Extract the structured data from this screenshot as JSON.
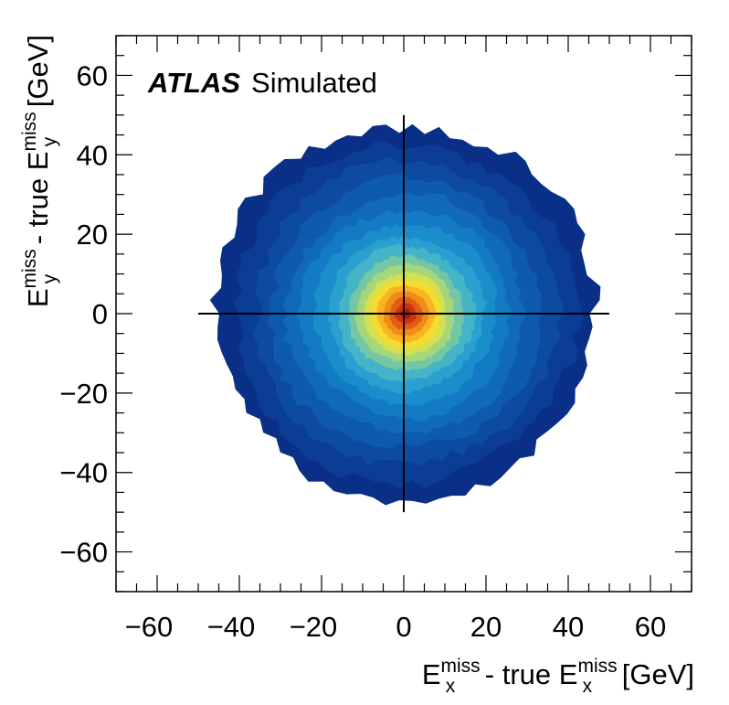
{
  "chart_data": {
    "type": "heatmap",
    "experiment_label": "ATLAS",
    "experiment_status": "Simulated",
    "xlabel": {
      "base": "E",
      "sup": "miss",
      "sub": "x",
      "middle": " - true E",
      "sup2": "miss",
      "sub2": "x",
      "units": " [GeV]"
    },
    "ylabel": {
      "base": "E",
      "sup": "miss",
      "sub": "y",
      "middle": " - true E",
      "sup2": "miss",
      "sub2": "y",
      "units": " [GeV]"
    },
    "xlim": [
      -70,
      70
    ],
    "ylim": [
      -70,
      70
    ],
    "x_ticks": [
      -60,
      -40,
      -20,
      0,
      20,
      40,
      60
    ],
    "y_ticks": [
      -60,
      -40,
      -20,
      0,
      20,
      40,
      60
    ],
    "x_tick_labels": [
      "−60",
      "−40",
      "−20",
      "0",
      "20",
      "40",
      "60"
    ],
    "y_tick_labels": [
      "−60",
      "−40",
      "−20",
      "0",
      "20",
      "40",
      "60"
    ],
    "distribution": {
      "shape": "2D gaussian-like contour map centered at origin",
      "center": [
        0.5,
        0
      ],
      "outer_radius": 46,
      "contour_radii": [
        46,
        41.5,
        37,
        33,
        29,
        25.5,
        22,
        19,
        16.5,
        14,
        12,
        10,
        8.5,
        7,
        5.5,
        4,
        2.5,
        1.2
      ],
      "contour_colors": [
        "#0a2f86",
        "#0b3d94",
        "#0d4ba1",
        "#0e5aae",
        "#106ab9",
        "#137bc3",
        "#1a8dcb",
        "#29a0d0",
        "#45b4c6",
        "#73c7a4",
        "#a6d67a",
        "#d4e050",
        "#f6dc2e",
        "#f8b421",
        "#f08a18",
        "#e25c13",
        "#cc3310",
        "#a61a0d"
      ]
    },
    "crosshair": {
      "horizontal_x_range": [
        -50,
        50
      ],
      "vertical_y_range": [
        -50,
        50
      ]
    },
    "grid": false
  }
}
